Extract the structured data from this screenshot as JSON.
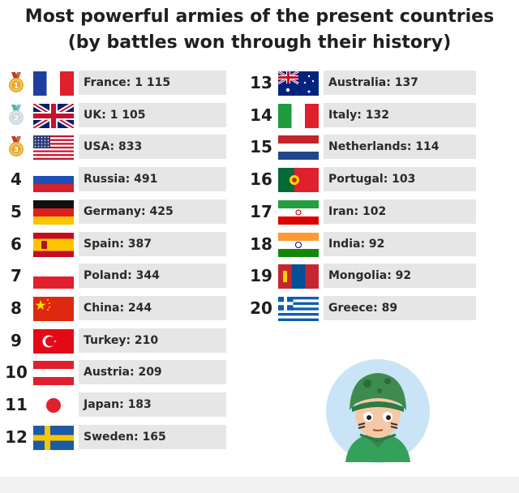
{
  "title_line1": "Most powerful armies of the present countries",
  "title_line2": "(by battles won through their history)",
  "chart_data": {
    "type": "table",
    "title": "Most powerful armies of the present countries (by battles won through their history)",
    "rows": [
      {
        "rank": 1,
        "rank_label": "1",
        "country": "France",
        "value": 1115,
        "label": "France: 1 115",
        "flag": "france"
      },
      {
        "rank": 2,
        "rank_label": "2",
        "country": "UK",
        "value": 1105,
        "label": "UK: 1 105",
        "flag": "uk"
      },
      {
        "rank": 3,
        "rank_label": "3",
        "country": "USA",
        "value": 833,
        "label": "USA: 833",
        "flag": "usa"
      },
      {
        "rank": 4,
        "rank_label": "4",
        "country": "Russia",
        "value": 491,
        "label": "Russia: 491",
        "flag": "russia"
      },
      {
        "rank": 5,
        "rank_label": "5",
        "country": "Germany",
        "value": 425,
        "label": "Germany: 425",
        "flag": "germany"
      },
      {
        "rank": 6,
        "rank_label": "6",
        "country": "Spain",
        "value": 387,
        "label": "Spain: 387",
        "flag": "spain"
      },
      {
        "rank": 7,
        "rank_label": "7",
        "country": "Poland",
        "value": 344,
        "label": "Poland: 344",
        "flag": "poland"
      },
      {
        "rank": 8,
        "rank_label": "8",
        "country": "China",
        "value": 244,
        "label": "China: 244",
        "flag": "china"
      },
      {
        "rank": 9,
        "rank_label": "9",
        "country": "Turkey",
        "value": 210,
        "label": "Turkey: 210",
        "flag": "turkey"
      },
      {
        "rank": 10,
        "rank_label": "10",
        "country": "Austria",
        "value": 209,
        "label": "Austria: 209",
        "flag": "austria"
      },
      {
        "rank": 11,
        "rank_label": "11",
        "country": "Japan",
        "value": 183,
        "label": "Japan: 183",
        "flag": "japan"
      },
      {
        "rank": 12,
        "rank_label": "12",
        "country": "Sweden",
        "value": 165,
        "label": "Sweden: 165",
        "flag": "sweden"
      },
      {
        "rank": 13,
        "rank_label": "13",
        "country": "Australia",
        "value": 137,
        "label": "Australia: 137",
        "flag": "australia"
      },
      {
        "rank": 14,
        "rank_label": "14",
        "country": "Italy",
        "value": 132,
        "label": "Italy: 132",
        "flag": "italy"
      },
      {
        "rank": 15,
        "rank_label": "15",
        "country": "Netherlands",
        "value": 114,
        "label": "Netherlands: 114",
        "flag": "netherlands"
      },
      {
        "rank": 16,
        "rank_label": "16",
        "country": "Portugal",
        "value": 103,
        "label": "Portugal: 103",
        "flag": "portugal"
      },
      {
        "rank": 17,
        "rank_label": "17",
        "country": "Iran",
        "value": 102,
        "label": "Iran: 102",
        "flag": "iran"
      },
      {
        "rank": 18,
        "rank_label": "18",
        "country": "India",
        "value": 92,
        "label": "India: 92",
        "flag": "india"
      },
      {
        "rank": 19,
        "rank_label": "19",
        "country": "Mongolia",
        "value": 92,
        "label": "Mongolia: 92",
        "flag": "mongolia"
      },
      {
        "rank": 20,
        "rank_label": "20",
        "country": "Greece",
        "value": 89,
        "label": "Greece: 89",
        "flag": "greece"
      }
    ]
  },
  "medals": [
    {
      "rank": 1,
      "label": "1",
      "color": "#e8a92a",
      "ribbon": "#c0392b"
    },
    {
      "rank": 2,
      "label": "2",
      "color": "#cfd8dc",
      "ribbon": "#4db6ac"
    },
    {
      "rank": 3,
      "label": "3",
      "color": "#e8a92a",
      "ribbon": "#c0392b"
    }
  ],
  "colors": {
    "bar": "#e6e6e6",
    "text": "#222222",
    "helmet": "#3d8b4f",
    "avatar_bg": "#c9e4f6"
  },
  "mascot": "soldier-avatar-icon"
}
